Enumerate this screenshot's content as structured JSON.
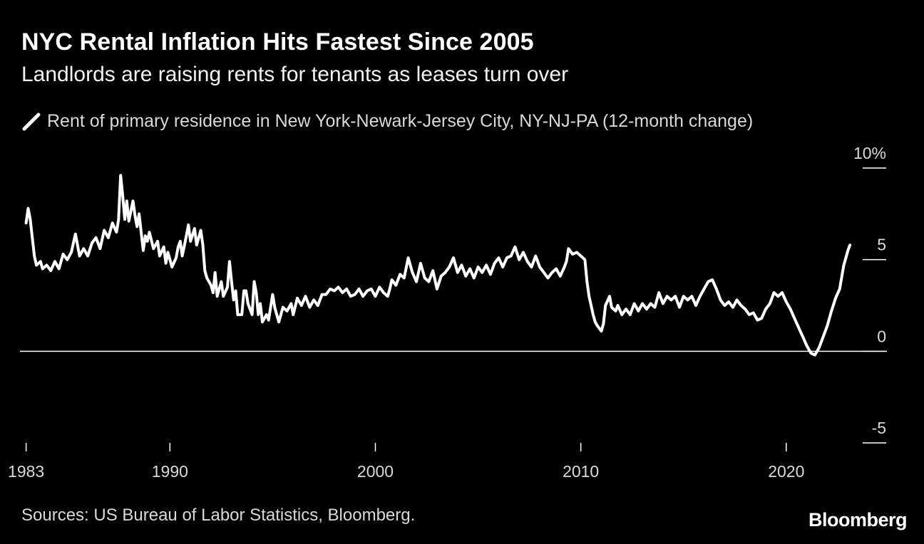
{
  "header": {
    "title": "NYC Rental Inflation Hits Fastest Since 2005",
    "subtitle": "Landlords are raising rents for tenants as leases turn over"
  },
  "legend": {
    "label": "Rent of primary residence in New York-Newark-Jersey City, NY-NJ-PA (12-month change)"
  },
  "footer": {
    "source": "Sources: US Bureau of Labor Statistics, Bloomberg.",
    "brand": "Bloomberg"
  },
  "colors": {
    "background": "#000000",
    "line": "#ffffff",
    "text": "#d9d9d9"
  },
  "chart_data": {
    "type": "line",
    "title": "NYC Rental Inflation Hits Fastest Since 2005",
    "subtitle": "Landlords are raising rents for tenants as leases turn over",
    "xlabel": "",
    "ylabel": "",
    "xlim": [
      1982.7,
      2024.9
    ],
    "ylim": [
      -5,
      10
    ],
    "y_ticks": [
      10,
      5,
      0,
      -5
    ],
    "y_tick_labels": [
      "10%",
      "5",
      "0",
      "-5"
    ],
    "x_ticks": [
      1983,
      1990,
      2000,
      2010,
      2020
    ],
    "x_tick_labels": [
      "1983",
      "1990",
      "2000",
      "2010",
      "2020"
    ],
    "grid": false,
    "zero_line": true,
    "series": [
      {
        "name": "Rent of primary residence in New York-Newark-Jersey City, NY-NJ-PA (12-month change)",
        "points": [
          [
            1983.0,
            7.0
          ],
          [
            1983.1,
            7.8
          ],
          [
            1983.2,
            7.2
          ],
          [
            1983.3,
            6.2
          ],
          [
            1983.4,
            5.2
          ],
          [
            1983.5,
            4.7
          ],
          [
            1983.7,
            4.9
          ],
          [
            1983.8,
            4.5
          ],
          [
            1984.0,
            4.7
          ],
          [
            1984.2,
            4.4
          ],
          [
            1984.4,
            4.9
          ],
          [
            1984.6,
            4.5
          ],
          [
            1984.8,
            5.3
          ],
          [
            1985.0,
            5.0
          ],
          [
            1985.2,
            5.4
          ],
          [
            1985.4,
            6.4
          ],
          [
            1985.6,
            5.2
          ],
          [
            1985.8,
            5.6
          ],
          [
            1986.0,
            5.2
          ],
          [
            1986.2,
            5.9
          ],
          [
            1986.4,
            6.2
          ],
          [
            1986.6,
            5.6
          ],
          [
            1986.8,
            6.6
          ],
          [
            1987.0,
            6.2
          ],
          [
            1987.2,
            7.0
          ],
          [
            1987.4,
            6.5
          ],
          [
            1987.5,
            7.2
          ],
          [
            1987.6,
            9.6
          ],
          [
            1987.7,
            8.5
          ],
          [
            1987.8,
            7.2
          ],
          [
            1987.9,
            8.2
          ],
          [
            1988.0,
            7.1
          ],
          [
            1988.2,
            8.2
          ],
          [
            1988.3,
            7.4
          ],
          [
            1988.4,
            6.8
          ],
          [
            1988.5,
            7.5
          ],
          [
            1988.6,
            6.5
          ],
          [
            1988.7,
            5.5
          ],
          [
            1988.8,
            6.3
          ],
          [
            1988.9,
            6.0
          ],
          [
            1989.0,
            6.5
          ],
          [
            1989.2,
            5.6
          ],
          [
            1989.4,
            6.0
          ],
          [
            1989.5,
            5.2
          ],
          [
            1989.7,
            5.7
          ],
          [
            1989.8,
            4.8
          ],
          [
            1989.9,
            5.4
          ],
          [
            1990.0,
            5.0
          ],
          [
            1990.1,
            4.6
          ],
          [
            1990.3,
            5.1
          ],
          [
            1990.4,
            5.7
          ],
          [
            1990.5,
            6.0
          ],
          [
            1990.6,
            5.2
          ],
          [
            1990.8,
            6.3
          ],
          [
            1990.9,
            6.9
          ],
          [
            1991.0,
            6.0
          ],
          [
            1991.2,
            6.7
          ],
          [
            1991.3,
            5.8
          ],
          [
            1991.5,
            6.6
          ],
          [
            1991.6,
            5.8
          ],
          [
            1991.7,
            4.4
          ],
          [
            1991.8,
            4.0
          ],
          [
            1992.0,
            3.6
          ],
          [
            1992.1,
            3.2
          ],
          [
            1992.2,
            4.3
          ],
          [
            1992.3,
            3.0
          ],
          [
            1992.5,
            3.8
          ],
          [
            1992.6,
            3.0
          ],
          [
            1992.8,
            3.5
          ],
          [
            1992.9,
            4.9
          ],
          [
            1993.0,
            3.8
          ],
          [
            1993.1,
            2.8
          ],
          [
            1993.2,
            3.3
          ],
          [
            1993.3,
            2.0
          ],
          [
            1993.5,
            2.0
          ],
          [
            1993.6,
            3.3
          ],
          [
            1993.7,
            3.3
          ],
          [
            1993.8,
            2.6
          ],
          [
            1994.0,
            2.0
          ],
          [
            1994.1,
            3.8
          ],
          [
            1994.2,
            3.2
          ],
          [
            1994.3,
            2.0
          ],
          [
            1994.4,
            2.6
          ],
          [
            1994.5,
            1.6
          ],
          [
            1994.7,
            2.0
          ],
          [
            1994.8,
            1.7
          ],
          [
            1995.0,
            3.1
          ],
          [
            1995.1,
            2.4
          ],
          [
            1995.2,
            2.0
          ],
          [
            1995.3,
            1.6
          ],
          [
            1995.5,
            2.4
          ],
          [
            1995.7,
            2.2
          ],
          [
            1995.9,
            2.6
          ],
          [
            1996.0,
            2.0
          ],
          [
            1996.2,
            2.9
          ],
          [
            1996.4,
            2.5
          ],
          [
            1996.6,
            3.0
          ],
          [
            1996.8,
            2.4
          ],
          [
            1997.0,
            2.8
          ],
          [
            1997.2,
            2.5
          ],
          [
            1997.4,
            3.1
          ],
          [
            1997.6,
            3.1
          ],
          [
            1997.8,
            3.4
          ],
          [
            1998.0,
            3.3
          ],
          [
            1998.2,
            3.5
          ],
          [
            1998.4,
            3.2
          ],
          [
            1998.6,
            3.4
          ],
          [
            1998.8,
            3.0
          ],
          [
            1999.0,
            3.1
          ],
          [
            1999.2,
            3.4
          ],
          [
            1999.4,
            3.0
          ],
          [
            1999.6,
            3.3
          ],
          [
            1999.8,
            3.4
          ],
          [
            2000.0,
            3.0
          ],
          [
            2000.2,
            3.5
          ],
          [
            2000.4,
            3.2
          ],
          [
            2000.6,
            3.0
          ],
          [
            2000.7,
            3.4
          ],
          [
            2000.8,
            3.9
          ],
          [
            2001.0,
            3.6
          ],
          [
            2001.2,
            4.2
          ],
          [
            2001.4,
            4.0
          ],
          [
            2001.6,
            5.1
          ],
          [
            2001.8,
            4.3
          ],
          [
            2002.0,
            3.8
          ],
          [
            2002.2,
            4.8
          ],
          [
            2002.4,
            4.0
          ],
          [
            2002.6,
            3.8
          ],
          [
            2002.8,
            4.4
          ],
          [
            2003.0,
            3.4
          ],
          [
            2003.2,
            4.1
          ],
          [
            2003.4,
            4.3
          ],
          [
            2003.6,
            4.6
          ],
          [
            2003.8,
            5.1
          ],
          [
            2004.0,
            4.3
          ],
          [
            2004.2,
            4.7
          ],
          [
            2004.4,
            4.1
          ],
          [
            2004.6,
            4.5
          ],
          [
            2004.8,
            4.0
          ],
          [
            2005.0,
            4.6
          ],
          [
            2005.2,
            4.3
          ],
          [
            2005.4,
            4.7
          ],
          [
            2005.6,
            4.2
          ],
          [
            2005.8,
            4.8
          ],
          [
            2006.0,
            5.1
          ],
          [
            2006.2,
            4.6
          ],
          [
            2006.4,
            5.1
          ],
          [
            2006.6,
            5.2
          ],
          [
            2006.8,
            5.7
          ],
          [
            2007.0,
            5.0
          ],
          [
            2007.2,
            5.4
          ],
          [
            2007.4,
            4.9
          ],
          [
            2007.6,
            4.6
          ],
          [
            2007.8,
            5.2
          ],
          [
            2008.0,
            4.6
          ],
          [
            2008.2,
            4.3
          ],
          [
            2008.4,
            4.0
          ],
          [
            2008.6,
            4.3
          ],
          [
            2008.8,
            4.5
          ],
          [
            2009.0,
            4.1
          ],
          [
            2009.2,
            4.6
          ],
          [
            2009.3,
            4.9
          ],
          [
            2009.4,
            5.6
          ],
          [
            2009.6,
            5.3
          ],
          [
            2009.8,
            5.4
          ],
          [
            2010.0,
            5.2
          ],
          [
            2010.2,
            5.0
          ],
          [
            2010.3,
            3.8
          ],
          [
            2010.4,
            3.0
          ],
          [
            2010.5,
            2.5
          ],
          [
            2010.6,
            2.0
          ],
          [
            2010.7,
            1.6
          ],
          [
            2010.8,
            1.4
          ],
          [
            2011.0,
            1.1
          ],
          [
            2011.1,
            1.5
          ],
          [
            2011.2,
            2.5
          ],
          [
            2011.4,
            3.0
          ],
          [
            2011.5,
            2.4
          ],
          [
            2011.7,
            2.2
          ],
          [
            2011.8,
            2.5
          ],
          [
            2012.0,
            2.0
          ],
          [
            2012.2,
            2.3
          ],
          [
            2012.4,
            2.0
          ],
          [
            2012.6,
            2.6
          ],
          [
            2012.8,
            2.2
          ],
          [
            2013.0,
            2.6
          ],
          [
            2013.2,
            2.3
          ],
          [
            2013.4,
            2.6
          ],
          [
            2013.6,
            2.4
          ],
          [
            2013.8,
            3.2
          ],
          [
            2014.0,
            2.6
          ],
          [
            2014.2,
            3.0
          ],
          [
            2014.4,
            2.8
          ],
          [
            2014.6,
            3.0
          ],
          [
            2014.8,
            2.4
          ],
          [
            2015.0,
            3.0
          ],
          [
            2015.2,
            2.8
          ],
          [
            2015.4,
            3.0
          ],
          [
            2015.6,
            2.5
          ],
          [
            2015.8,
            3.0
          ],
          [
            2016.0,
            3.4
          ],
          [
            2016.2,
            3.8
          ],
          [
            2016.4,
            3.9
          ],
          [
            2016.6,
            3.4
          ],
          [
            2016.8,
            2.8
          ],
          [
            2017.0,
            2.5
          ],
          [
            2017.2,
            2.7
          ],
          [
            2017.4,
            2.4
          ],
          [
            2017.6,
            2.8
          ],
          [
            2017.8,
            2.5
          ],
          [
            2018.0,
            2.3
          ],
          [
            2018.2,
            2.0
          ],
          [
            2018.4,
            2.1
          ],
          [
            2018.6,
            1.7
          ],
          [
            2018.8,
            1.8
          ],
          [
            2019.0,
            2.3
          ],
          [
            2019.2,
            2.6
          ],
          [
            2019.4,
            3.2
          ],
          [
            2019.6,
            3.0
          ],
          [
            2019.8,
            3.2
          ],
          [
            2020.0,
            2.7
          ],
          [
            2020.2,
            2.3
          ],
          [
            2020.4,
            1.8
          ],
          [
            2020.6,
            1.3
          ],
          [
            2020.8,
            0.8
          ],
          [
            2021.0,
            0.3
          ],
          [
            2021.2,
            -0.1
          ],
          [
            2021.4,
            -0.2
          ],
          [
            2021.6,
            0.2
          ],
          [
            2021.8,
            0.8
          ],
          [
            2022.0,
            1.4
          ],
          [
            2022.2,
            2.2
          ],
          [
            2022.4,
            2.9
          ],
          [
            2022.6,
            3.4
          ],
          [
            2022.8,
            4.7
          ],
          [
            2023.0,
            5.5
          ],
          [
            2023.1,
            5.8
          ]
        ]
      }
    ]
  }
}
